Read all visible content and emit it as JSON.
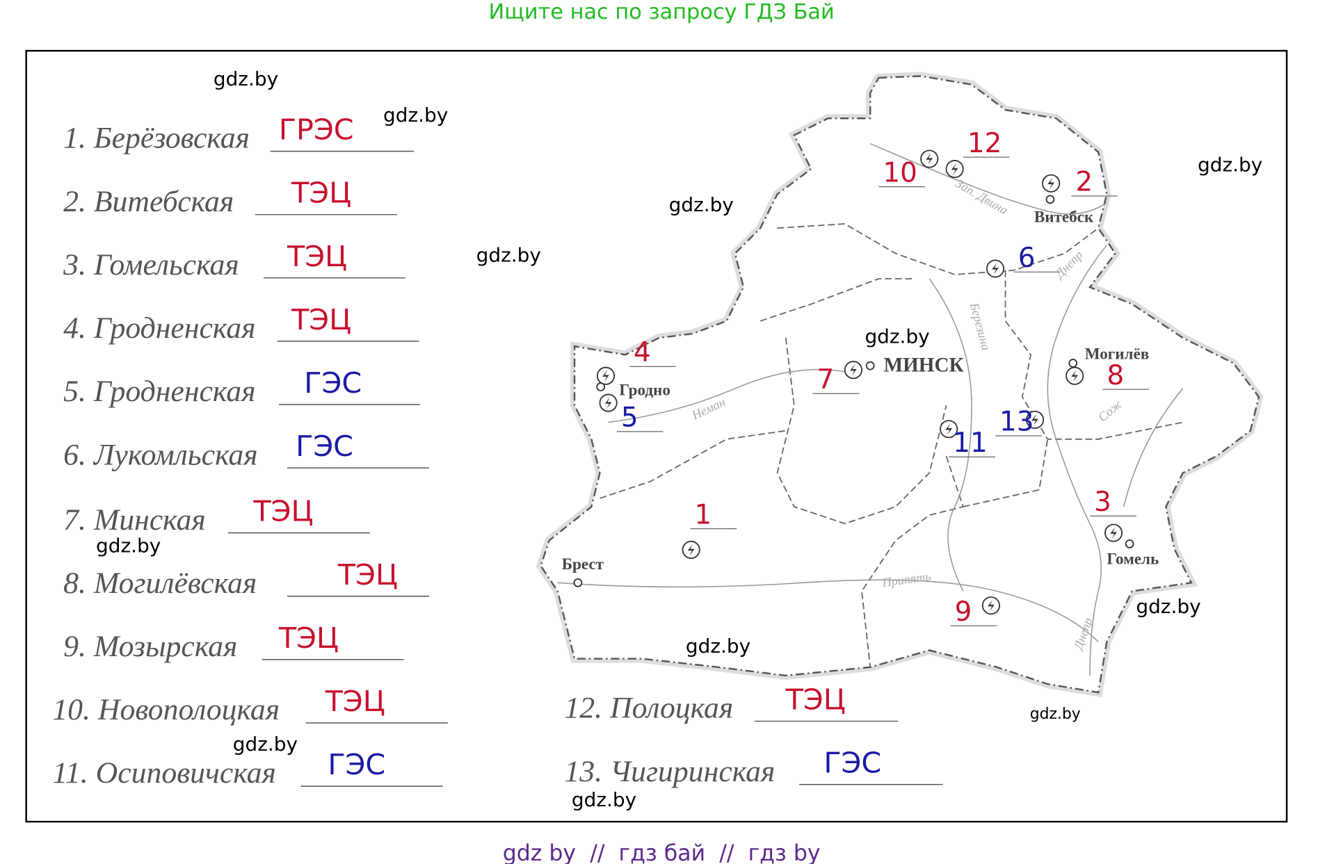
{
  "header": {
    "title": "Ищите нас по запросу ГДЗ Бай"
  },
  "items": [
    {
      "label": "1. Берёзовская",
      "answer": "ГРЭС"
    },
    {
      "label": "2. Витебская",
      "answer": "ТЭЦ"
    },
    {
      "label": "3. Гомельская",
      "answer": "ТЭЦ"
    },
    {
      "label": "4. Гродненская",
      "answer": "ТЭЦ"
    },
    {
      "label": "5. Гродненская",
      "answer": "ГЭС"
    },
    {
      "label": "6. Лукомльская",
      "answer": "ГЭС"
    },
    {
      "label": "7. Минская",
      "answer": "ТЭЦ"
    },
    {
      "label": "8. Могилёвская",
      "answer": "ТЭЦ"
    },
    {
      "label": "9. Мозырская",
      "answer": "ТЭЦ"
    },
    {
      "label": "10. Новополоцкая",
      "answer": "ТЭЦ"
    },
    {
      "label": "11. Осиповичская",
      "answer": "ГЭС"
    },
    {
      "label": "12. Полоцкая",
      "answer": "ТЭЦ"
    },
    {
      "label": "13. Чигиринская",
      "answer": "ГЭС"
    }
  ],
  "map": {
    "cities": [
      "Витебск",
      "Могилёв",
      "МИНСК",
      "Гродно",
      "Брест",
      "Гомель"
    ],
    "rivers": [
      "Зап. Двина",
      "Днепр",
      "Березина",
      "Неман",
      "Сож",
      "Припять",
      "Днепр"
    ],
    "numbers": [
      "12",
      "10",
      "2",
      "6",
      "4",
      "7",
      "8",
      "5",
      "13",
      "11",
      "1",
      "3",
      "9"
    ]
  },
  "watermarks": [
    "gdz.by",
    "gdz.by",
    "gdz.by",
    "gdz.by",
    "gdz.by",
    "gdz.by",
    "gdz.by",
    "gdz.by",
    "gdz.by",
    "gdz.by",
    "gdz.by",
    "gdz.by"
  ],
  "footer": {
    "text": "gdz by  //  гдз бай  //  гдз by"
  }
}
